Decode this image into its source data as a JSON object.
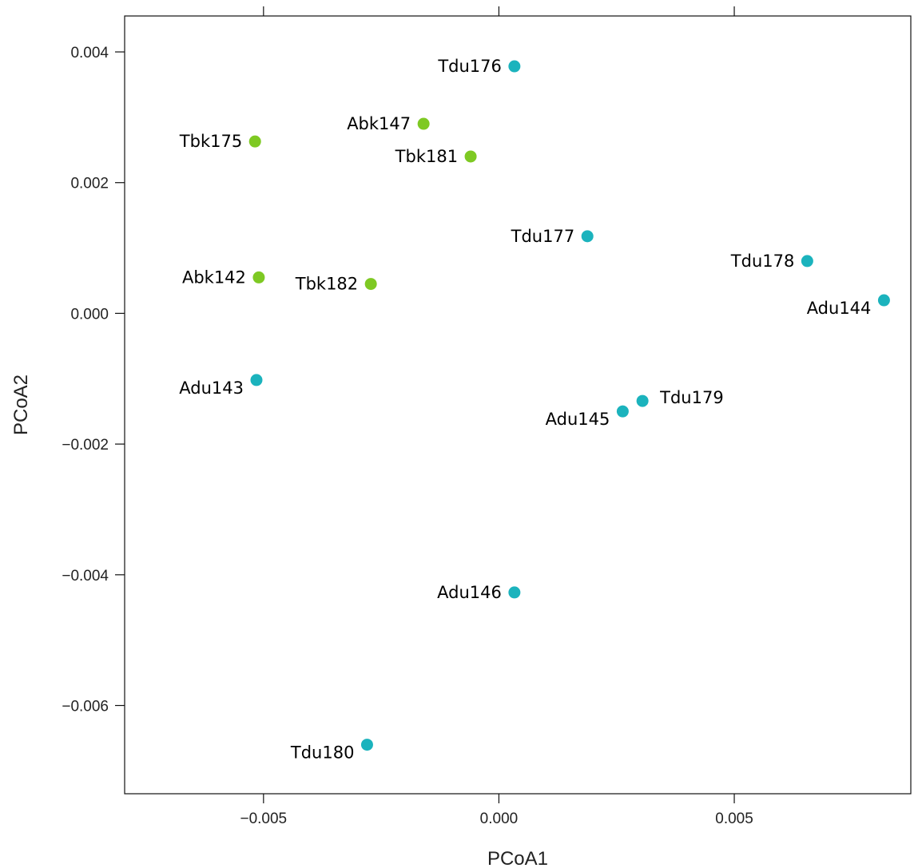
{
  "chart_data": {
    "type": "scatter",
    "title": "",
    "xlabel": "PCoA1",
    "ylabel": "PCoA2",
    "xlim": [
      -0.00795,
      0.00875
    ],
    "ylim": [
      -0.00735,
      0.00455
    ],
    "x_ticks": [
      -0.005,
      0.0,
      0.005
    ],
    "x_tick_labels": [
      "−0.005",
      "0.000",
      "0.005"
    ],
    "y_ticks": [
      0.004,
      0.002,
      0.0,
      -0.002,
      -0.004,
      -0.006
    ],
    "y_tick_labels": [
      "0.004",
      "0.002",
      "0.000",
      "−0.002",
      "−0.004",
      "−0.006"
    ],
    "grid": false,
    "legend": "none",
    "group_colors": {
      "bk": "#7ec923",
      "du": "#1bb3bd"
    },
    "points": [
      {
        "label": "Tdu176",
        "x": 0.00033,
        "y": 0.00378,
        "group": "du",
        "anchor": "left"
      },
      {
        "label": "Abk147",
        "x": -0.0016,
        "y": 0.0029,
        "group": "bk",
        "anchor": "left"
      },
      {
        "label": "Tbk175",
        "x": -0.00518,
        "y": 0.00263,
        "group": "bk",
        "anchor": "left"
      },
      {
        "label": "Tbk181",
        "x": -0.0006,
        "y": 0.0024,
        "group": "bk",
        "anchor": "left"
      },
      {
        "label": "Tdu177",
        "x": 0.00188,
        "y": 0.00118,
        "group": "du",
        "anchor": "left"
      },
      {
        "label": "Tdu178",
        "x": 0.00655,
        "y": 0.0008,
        "group": "du",
        "anchor": "left"
      },
      {
        "label": "Abk142",
        "x": -0.0051,
        "y": 0.00055,
        "group": "bk",
        "anchor": "left"
      },
      {
        "label": "Tbk182",
        "x": -0.00272,
        "y": 0.00045,
        "group": "bk",
        "anchor": "left"
      },
      {
        "label": "Adu144",
        "x": 0.00818,
        "y": 0.0002,
        "group": "du",
        "anchor": "left-below"
      },
      {
        "label": "Adu143",
        "x": -0.00515,
        "y": -0.00102,
        "group": "du",
        "anchor": "left-below"
      },
      {
        "label": "Tdu179",
        "x": 0.00305,
        "y": -0.00134,
        "group": "du",
        "anchor": "right"
      },
      {
        "label": "Adu145",
        "x": 0.00263,
        "y": -0.0015,
        "group": "du",
        "anchor": "left-below"
      },
      {
        "label": "Adu146",
        "x": 0.00033,
        "y": -0.00427,
        "group": "du",
        "anchor": "left"
      },
      {
        "label": "Tdu180",
        "x": -0.0028,
        "y": -0.0066,
        "group": "du",
        "anchor": "left-below"
      }
    ]
  }
}
